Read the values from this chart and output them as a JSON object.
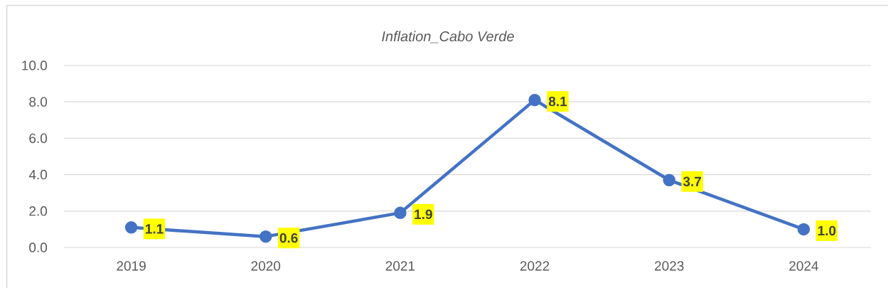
{
  "chart_data": {
    "type": "line",
    "title": "*Inflation_Cabo Verde*",
    "categories": [
      "2019",
      "2020",
      "2021",
      "2022",
      "2023",
      "2024"
    ],
    "values": [
      1.1,
      0.6,
      1.9,
      8.1,
      3.7,
      1.0
    ],
    "value_labels": [
      "1.1",
      "0.6",
      "1.9",
      "8.1",
      "3.7",
      "1.0"
    ],
    "color": "#4472c4",
    "ylim": [
      0,
      10
    ],
    "yticks": [
      {
        "value": 0,
        "label": "0.0"
      },
      {
        "value": 2,
        "label": "2.0"
      },
      {
        "value": 4,
        "label": "4.0"
      },
      {
        "value": 6,
        "label": "6.0"
      },
      {
        "value": 8,
        "label": "8.0"
      },
      {
        "value": 10,
        "label": "10.0"
      }
    ],
    "grid": "y",
    "marker": "circle",
    "line_style": "solid"
  }
}
